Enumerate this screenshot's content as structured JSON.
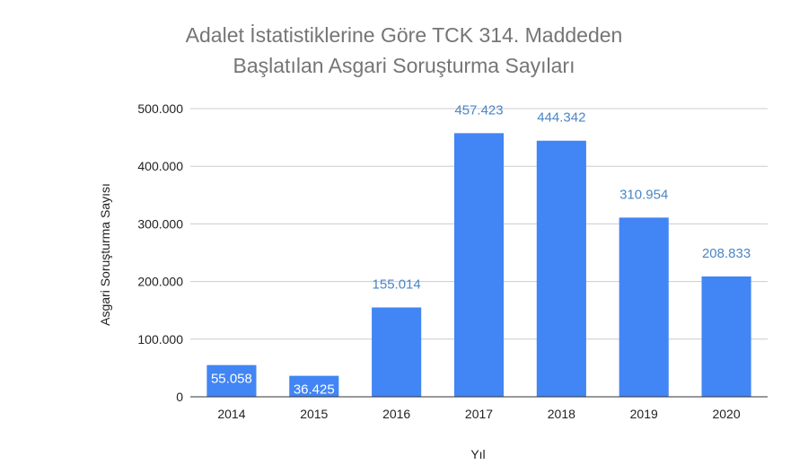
{
  "chart_data": {
    "type": "bar",
    "title_lines": [
      "Adalet İstatistiklerine Göre TCK 314. Maddeden",
      "Başlatılan Asgari Soruşturma Sayıları"
    ],
    "xlabel": "Yıl",
    "ylabel": "Asgari Soruşturma Sayısı",
    "categories": [
      "2014",
      "2015",
      "2016",
      "2017",
      "2018",
      "2019",
      "2020"
    ],
    "values": [
      55058,
      36425,
      155014,
      457423,
      444342,
      310954,
      208833
    ],
    "data_labels": [
      "55.058",
      "36.425",
      "155.014",
      "457.423",
      "444.342",
      "310.954",
      "208.833"
    ],
    "ylim": [
      0,
      500000
    ],
    "yticks": [
      0,
      100000,
      200000,
      300000,
      400000,
      500000
    ],
    "ytick_labels": [
      "0",
      "100.000",
      "200.000",
      "300.000",
      "400.000",
      "500.000"
    ],
    "grid": true,
    "legend": false,
    "colors": {
      "bar": "#4285f4",
      "label_outside": "#4a86c5",
      "label_inside": "#ffffff",
      "grid": "#cccccc",
      "axis": "#333333",
      "title": "#757575",
      "text": "#222222"
    }
  }
}
